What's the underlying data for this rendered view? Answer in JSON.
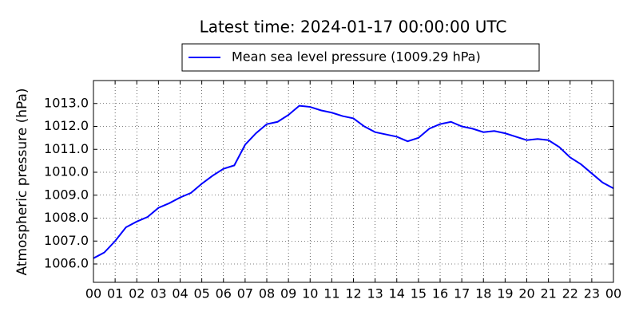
{
  "chart_data": {
    "type": "line",
    "title": "Latest time: 2024-01-17 00:00:00 UTC",
    "y_label": "Atmospheric pressure (hPa)",
    "legend": "upper center",
    "grid": true,
    "x": [
      0,
      0.5,
      1,
      1.5,
      2,
      2.5,
      3,
      3.5,
      4,
      4.5,
      5,
      5.5,
      6,
      6.5,
      7,
      7.5,
      8,
      8.5,
      9,
      9.5,
      10,
      10.5,
      11,
      11.5,
      12,
      12.5,
      13,
      13.5,
      14,
      14.5,
      15,
      15.5,
      16,
      16.5,
      17,
      17.5,
      18,
      18.5,
      19,
      19.5,
      20,
      20.5,
      21,
      21.5,
      22,
      22.5,
      23,
      23.5,
      24
    ],
    "series": [
      {
        "name": "Mean sea level pressure (1009.29 hPa)",
        "color": "#0000ff",
        "values": [
          1006.25,
          1006.5,
          1007.0,
          1007.6,
          1007.85,
          1008.05,
          1008.45,
          1008.65,
          1008.9,
          1009.1,
          1009.5,
          1009.85,
          1010.15,
          1010.3,
          1011.2,
          1011.7,
          1012.1,
          1012.2,
          1012.5,
          1012.9,
          1012.85,
          1012.7,
          1012.6,
          1012.45,
          1012.35,
          1012.0,
          1011.75,
          1011.65,
          1011.55,
          1011.35,
          1011.5,
          1011.9,
          1012.1,
          1012.2,
          1012.0,
          1011.9,
          1011.75,
          1011.8,
          1011.7,
          1011.55,
          1011.4,
          1011.45,
          1011.4,
          1011.1,
          1010.65,
          1010.35,
          1009.95,
          1009.55,
          1009.3
        ]
      }
    ],
    "xlim": [
      0,
      24
    ],
    "xticks": [
      {
        "value": 0,
        "label": "00"
      },
      {
        "value": 1,
        "label": "01"
      },
      {
        "value": 2,
        "label": "02"
      },
      {
        "value": 3,
        "label": "03"
      },
      {
        "value": 4,
        "label": "04"
      },
      {
        "value": 5,
        "label": "05"
      },
      {
        "value": 6,
        "label": "06"
      },
      {
        "value": 7,
        "label": "07"
      },
      {
        "value": 8,
        "label": "08"
      },
      {
        "value": 9,
        "label": "09"
      },
      {
        "value": 10,
        "label": "10"
      },
      {
        "value": 11,
        "label": "11"
      },
      {
        "value": 12,
        "label": "12"
      },
      {
        "value": 13,
        "label": "13"
      },
      {
        "value": 14,
        "label": "14"
      },
      {
        "value": 15,
        "label": "15"
      },
      {
        "value": 16,
        "label": "16"
      },
      {
        "value": 17,
        "label": "17"
      },
      {
        "value": 18,
        "label": "18"
      },
      {
        "value": 19,
        "label": "19"
      },
      {
        "value": 20,
        "label": "20"
      },
      {
        "value": 21,
        "label": "21"
      },
      {
        "value": 22,
        "label": "22"
      },
      {
        "value": 23,
        "label": "23"
      },
      {
        "value": 24,
        "label": "00"
      }
    ],
    "ylim": [
      1005.2,
      1014.0
    ],
    "yticks": [
      {
        "value": 1006,
        "label": "1006.0"
      },
      {
        "value": 1007,
        "label": "1007.0"
      },
      {
        "value": 1008,
        "label": "1008.0"
      },
      {
        "value": 1009,
        "label": "1009.0"
      },
      {
        "value": 1010,
        "label": "1010.0"
      },
      {
        "value": 1011,
        "label": "1011.0"
      },
      {
        "value": 1012,
        "label": "1012.0"
      },
      {
        "value": 1013,
        "label": "1013.0"
      }
    ]
  }
}
